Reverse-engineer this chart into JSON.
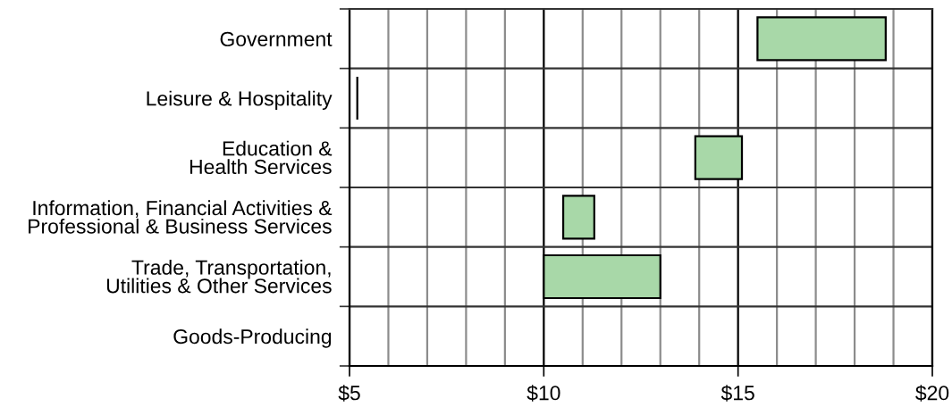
{
  "chart_data": {
    "type": "bar",
    "orientation": "horizontal",
    "categories": [
      "Government",
      "Leisure & Hospitality",
      "Education &\nHealth Services",
      "Information, Financial Activities &\nProfessional & Business Services",
      "Trade, Transportation,\nUtilities & Other Services",
      "Goods-Producing"
    ],
    "base": [
      15.5,
      5.2,
      13.9,
      10.5,
      10.0,
      null
    ],
    "values": [
      3.3,
      0,
      1.2,
      0.8,
      3.0,
      null
    ],
    "colors": [
      "#a8d8a8",
      "#000000",
      "#a8d8a8",
      "#a8d8a8",
      "#a8d8a8",
      null
    ],
    "xlim": [
      5,
      20
    ],
    "xticks": [
      {
        "value": 5,
        "label": "$5"
      },
      {
        "value": 6,
        "label": null
      },
      {
        "value": 7,
        "label": null
      },
      {
        "value": 8,
        "label": null
      },
      {
        "value": 9,
        "label": null
      },
      {
        "value": 10,
        "label": "$10"
      },
      {
        "value": 11,
        "label": null
      },
      {
        "value": 12,
        "label": null
      },
      {
        "value": 13,
        "label": null
      },
      {
        "value": 14,
        "label": null
      },
      {
        "value": 15,
        "label": "$15"
      },
      {
        "value": 16,
        "label": null
      },
      {
        "value": 17,
        "label": null
      },
      {
        "value": 18,
        "label": null
      },
      {
        "value": 19,
        "label": null
      },
      {
        "value": 20,
        "label": "$20"
      }
    ],
    "grid": true
  }
}
